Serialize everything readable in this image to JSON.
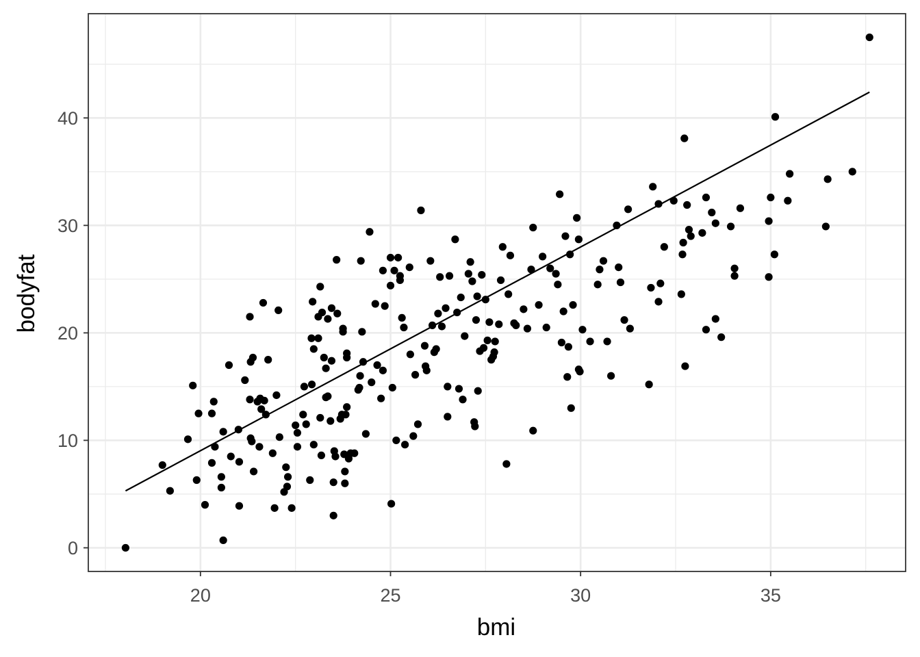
{
  "chart_data": {
    "type": "scatter",
    "title": "",
    "xlabel": "bmi",
    "ylabel": "bodyfat",
    "xlim": [
      17.05,
      38.55
    ],
    "ylim": [
      -2.2,
      49.7
    ],
    "x_ticks": [
      20,
      25,
      30,
      35
    ],
    "x_tick_labels": [
      "20",
      "25",
      "30",
      "35"
    ],
    "y_ticks": [
      0,
      10,
      20,
      30,
      40
    ],
    "y_tick_labels": [
      "0",
      "10",
      "20",
      "30",
      "40"
    ],
    "x_minor_ticks": [
      17.5,
      22.5,
      27.5,
      32.5,
      37.5
    ],
    "y_minor_ticks": [
      5,
      15,
      25,
      35,
      45
    ],
    "grid": true,
    "theme": "bw",
    "colors": {
      "points": "#000000",
      "line": "#000000",
      "grid": "#ebebeb",
      "panel_border": "#333333",
      "tick_label": "#4d4d4d"
    },
    "series": [
      {
        "type": "scatter",
        "points": [
          [
            18.03,
            0.0
          ],
          [
            19.0,
            7.7
          ],
          [
            19.2,
            5.3
          ],
          [
            19.67,
            10.1
          ],
          [
            19.8,
            15.1
          ],
          [
            19.9,
            6.3
          ],
          [
            19.95,
            12.5
          ],
          [
            20.12,
            4.0
          ],
          [
            20.3,
            12.5
          ],
          [
            20.3,
            7.9
          ],
          [
            20.35,
            13.6
          ],
          [
            20.38,
            9.4
          ],
          [
            20.55,
            6.6
          ],
          [
            20.55,
            5.6
          ],
          [
            20.6,
            10.8
          ],
          [
            20.6,
            0.7
          ],
          [
            20.75,
            17.0
          ],
          [
            20.8,
            8.5
          ],
          [
            21.0,
            11.0
          ],
          [
            21.02,
            8.0
          ],
          [
            21.02,
            3.9
          ],
          [
            21.17,
            15.6
          ],
          [
            21.3,
            21.5
          ],
          [
            21.3,
            13.8
          ],
          [
            21.32,
            17.3
          ],
          [
            21.32,
            10.2
          ],
          [
            21.35,
            9.9
          ],
          [
            21.38,
            17.7
          ],
          [
            21.4,
            7.1
          ],
          [
            21.5,
            13.6
          ],
          [
            21.55,
            9.4
          ],
          [
            21.57,
            13.9
          ],
          [
            21.6,
            12.9
          ],
          [
            21.65,
            22.8
          ],
          [
            21.68,
            13.7
          ],
          [
            21.72,
            12.4
          ],
          [
            21.78,
            17.5
          ],
          [
            21.9,
            8.8
          ],
          [
            21.95,
            3.7
          ],
          [
            22.0,
            14.2
          ],
          [
            22.05,
            22.1
          ],
          [
            22.08,
            10.3
          ],
          [
            22.2,
            5.2
          ],
          [
            22.25,
            7.5
          ],
          [
            22.28,
            5.7
          ],
          [
            22.3,
            6.6
          ],
          [
            22.4,
            3.7
          ],
          [
            22.5,
            11.4
          ],
          [
            22.55,
            10.7
          ],
          [
            22.55,
            9.4
          ],
          [
            22.7,
            12.4
          ],
          [
            22.73,
            15.0
          ],
          [
            22.78,
            11.5
          ],
          [
            22.88,
            6.3
          ],
          [
            22.92,
            19.5
          ],
          [
            22.93,
            15.2
          ],
          [
            22.95,
            22.9
          ],
          [
            22.98,
            9.6
          ],
          [
            22.98,
            18.5
          ],
          [
            23.1,
            19.5
          ],
          [
            23.1,
            21.5
          ],
          [
            23.15,
            24.3
          ],
          [
            23.15,
            12.1
          ],
          [
            23.18,
            8.6
          ],
          [
            23.2,
            21.9
          ],
          [
            23.25,
            17.7
          ],
          [
            23.3,
            16.7
          ],
          [
            23.3,
            14.0
          ],
          [
            23.35,
            14.1
          ],
          [
            23.35,
            21.3
          ],
          [
            23.42,
            11.8
          ],
          [
            23.45,
            22.3
          ],
          [
            23.45,
            17.4
          ],
          [
            23.5,
            6.1
          ],
          [
            23.5,
            3.0
          ],
          [
            23.52,
            9.0
          ],
          [
            23.55,
            8.5
          ],
          [
            23.58,
            26.8
          ],
          [
            23.6,
            21.8
          ],
          [
            23.68,
            12.0
          ],
          [
            23.72,
            12.4
          ],
          [
            23.75,
            20.1
          ],
          [
            23.75,
            20.4
          ],
          [
            23.78,
            8.7
          ],
          [
            23.8,
            7.1
          ],
          [
            23.8,
            6.0
          ],
          [
            23.82,
            12.4
          ],
          [
            23.85,
            17.7
          ],
          [
            23.85,
            18.1
          ],
          [
            23.85,
            13.1
          ],
          [
            23.9,
            8.3
          ],
          [
            23.95,
            8.8
          ],
          [
            24.05,
            8.8
          ],
          [
            24.15,
            14.7
          ],
          [
            24.18,
            14.9
          ],
          [
            24.2,
            16.0
          ],
          [
            24.22,
            26.7
          ],
          [
            24.25,
            20.1
          ],
          [
            24.28,
            17.3
          ],
          [
            24.35,
            10.6
          ],
          [
            24.45,
            29.4
          ],
          [
            24.5,
            15.4
          ],
          [
            24.6,
            22.7
          ],
          [
            24.65,
            17.0
          ],
          [
            24.75,
            13.9
          ],
          [
            24.8,
            16.5
          ],
          [
            24.8,
            25.8
          ],
          [
            24.85,
            22.5
          ],
          [
            25.0,
            27.0
          ],
          [
            25.0,
            24.4
          ],
          [
            25.02,
            4.1
          ],
          [
            25.05,
            14.9
          ],
          [
            25.1,
            25.8
          ],
          [
            25.15,
            10.0
          ],
          [
            25.2,
            27.0
          ],
          [
            25.25,
            25.3
          ],
          [
            25.25,
            24.9
          ],
          [
            25.3,
            21.4
          ],
          [
            25.35,
            20.5
          ],
          [
            25.38,
            9.6
          ],
          [
            25.5,
            26.1
          ],
          [
            25.52,
            18.0
          ],
          [
            25.6,
            10.4
          ],
          [
            25.65,
            16.1
          ],
          [
            25.72,
            11.5
          ],
          [
            25.8,
            31.4
          ],
          [
            25.9,
            18.8
          ],
          [
            25.92,
            16.9
          ],
          [
            25.95,
            16.5
          ],
          [
            26.05,
            26.7
          ],
          [
            26.1,
            20.7
          ],
          [
            26.15,
            18.2
          ],
          [
            26.2,
            18.5
          ],
          [
            26.25,
            21.8
          ],
          [
            26.3,
            25.2
          ],
          [
            26.35,
            20.6
          ],
          [
            26.45,
            22.3
          ],
          [
            26.5,
            15.0
          ],
          [
            26.5,
            12.2
          ],
          [
            26.55,
            25.3
          ],
          [
            26.7,
            28.7
          ],
          [
            26.75,
            21.9
          ],
          [
            26.8,
            14.8
          ],
          [
            26.85,
            23.3
          ],
          [
            26.9,
            13.8
          ],
          [
            26.95,
            19.7
          ],
          [
            27.05,
            25.5
          ],
          [
            27.1,
            26.6
          ],
          [
            27.15,
            24.8
          ],
          [
            27.2,
            11.7
          ],
          [
            27.22,
            11.3
          ],
          [
            27.25,
            21.2
          ],
          [
            27.28,
            23.4
          ],
          [
            27.3,
            14.6
          ],
          [
            27.35,
            18.3
          ],
          [
            27.4,
            25.4
          ],
          [
            27.45,
            18.6
          ],
          [
            27.5,
            23.1
          ],
          [
            27.55,
            19.3
          ],
          [
            27.6,
            21.0
          ],
          [
            27.65,
            17.5
          ],
          [
            27.7,
            17.8
          ],
          [
            27.73,
            18.2
          ],
          [
            27.75,
            19.2
          ],
          [
            27.85,
            20.8
          ],
          [
            27.9,
            24.9
          ],
          [
            27.95,
            28.0
          ],
          [
            28.05,
            7.8
          ],
          [
            28.1,
            23.6
          ],
          [
            28.15,
            27.2
          ],
          [
            28.25,
            20.9
          ],
          [
            28.3,
            20.7
          ],
          [
            28.5,
            22.2
          ],
          [
            28.6,
            20.4
          ],
          [
            28.7,
            25.9
          ],
          [
            28.75,
            29.8
          ],
          [
            28.75,
            10.9
          ],
          [
            28.9,
            22.6
          ],
          [
            29.0,
            27.1
          ],
          [
            29.1,
            20.5
          ],
          [
            29.2,
            26.0
          ],
          [
            29.35,
            25.5
          ],
          [
            29.4,
            24.5
          ],
          [
            29.45,
            32.9
          ],
          [
            29.5,
            19.1
          ],
          [
            29.55,
            22.0
          ],
          [
            29.6,
            29.0
          ],
          [
            29.65,
            15.9
          ],
          [
            29.68,
            18.7
          ],
          [
            29.72,
            27.3
          ],
          [
            29.75,
            13.0
          ],
          [
            29.8,
            22.6
          ],
          [
            29.9,
            30.7
          ],
          [
            29.95,
            28.7
          ],
          [
            29.95,
            16.6
          ],
          [
            29.98,
            16.4
          ],
          [
            30.05,
            20.3
          ],
          [
            30.25,
            19.2
          ],
          [
            30.45,
            24.5
          ],
          [
            30.5,
            25.9
          ],
          [
            30.6,
            26.7
          ],
          [
            30.7,
            19.2
          ],
          [
            30.8,
            16.0
          ],
          [
            30.95,
            30.0
          ],
          [
            31.0,
            26.1
          ],
          [
            31.05,
            24.7
          ],
          [
            31.15,
            21.2
          ],
          [
            31.25,
            31.5
          ],
          [
            31.3,
            20.4
          ],
          [
            31.8,
            15.2
          ],
          [
            31.85,
            24.2
          ],
          [
            31.9,
            33.6
          ],
          [
            32.05,
            32.0
          ],
          [
            32.05,
            22.9
          ],
          [
            32.1,
            24.6
          ],
          [
            32.2,
            28.0
          ],
          [
            32.45,
            32.3
          ],
          [
            32.65,
            23.6
          ],
          [
            32.68,
            27.3
          ],
          [
            32.7,
            28.4
          ],
          [
            32.73,
            38.1
          ],
          [
            32.75,
            16.9
          ],
          [
            32.8,
            31.9
          ],
          [
            32.85,
            29.6
          ],
          [
            32.9,
            29.0
          ],
          [
            33.2,
            29.3
          ],
          [
            33.3,
            32.6
          ],
          [
            33.3,
            20.3
          ],
          [
            33.45,
            31.2
          ],
          [
            33.55,
            30.2
          ],
          [
            33.55,
            21.3
          ],
          [
            33.7,
            19.6
          ],
          [
            33.95,
            29.9
          ],
          [
            34.05,
            25.3
          ],
          [
            34.05,
            26.0
          ],
          [
            34.2,
            31.6
          ],
          [
            34.95,
            25.2
          ],
          [
            34.95,
            30.4
          ],
          [
            35.0,
            32.6
          ],
          [
            35.1,
            27.3
          ],
          [
            35.12,
            40.1
          ],
          [
            35.45,
            32.3
          ],
          [
            35.5,
            34.8
          ],
          [
            36.45,
            29.9
          ],
          [
            36.5,
            34.3
          ],
          [
            37.15,
            35.0
          ],
          [
            37.6,
            47.5
          ]
        ]
      },
      {
        "type": "line",
        "points": [
          [
            18.03,
            5.3
          ],
          [
            37.6,
            42.4
          ]
        ]
      }
    ]
  }
}
